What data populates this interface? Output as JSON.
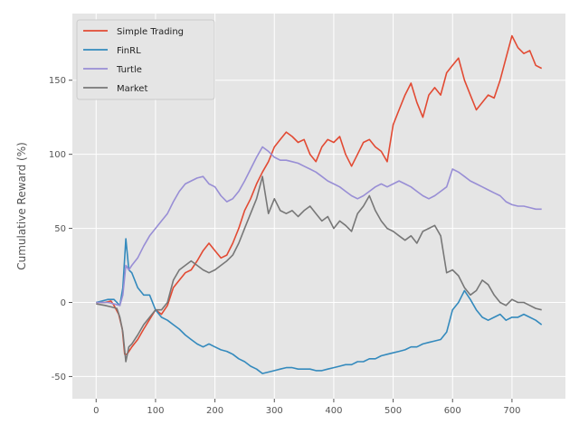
{
  "chart_data": {
    "type": "line",
    "title": "",
    "xlabel": "",
    "ylabel": "Cumulative Reward (%)",
    "xlim": [
      -40,
      790
    ],
    "ylim": [
      -65,
      195
    ],
    "xticks": [
      0,
      100,
      200,
      300,
      400,
      500,
      600,
      700
    ],
    "yticks": [
      -50,
      0,
      50,
      100,
      150
    ],
    "grid": true,
    "legend_position": "upper-left",
    "series": [
      {
        "name": "Simple Trading",
        "color": "#E24A33",
        "x": [
          0,
          15,
          25,
          30,
          38,
          44,
          48,
          52,
          60,
          70,
          80,
          100,
          110,
          120,
          130,
          140,
          150,
          160,
          170,
          180,
          190,
          200,
          210,
          220,
          230,
          240,
          250,
          260,
          270,
          280,
          290,
          300,
          310,
          320,
          330,
          340,
          350,
          360,
          370,
          380,
          390,
          400,
          410,
          420,
          430,
          440,
          450,
          460,
          470,
          480,
          490,
          500,
          510,
          520,
          530,
          540,
          550,
          560,
          570,
          580,
          590,
          600,
          610,
          620,
          630,
          640,
          650,
          660,
          670,
          680,
          690,
          700,
          710,
          720,
          730,
          740,
          750
        ],
        "y": [
          0,
          0,
          1,
          -2,
          -8,
          -18,
          -35,
          -35,
          -30,
          -25,
          -18,
          -5,
          -8,
          -2,
          10,
          15,
          20,
          22,
          28,
          35,
          40,
          35,
          30,
          32,
          40,
          50,
          62,
          70,
          80,
          88,
          95,
          105,
          110,
          115,
          112,
          108,
          110,
          100,
          95,
          105,
          110,
          108,
          112,
          100,
          92,
          100,
          108,
          110,
          105,
          102,
          95,
          120,
          130,
          140,
          148,
          135,
          125,
          140,
          145,
          140,
          155,
          160,
          165,
          150,
          140,
          130,
          135,
          140,
          138,
          150,
          165,
          180,
          172,
          168,
          170,
          160,
          158
        ]
      },
      {
        "name": "FinRL",
        "color": "#348ABD",
        "x": [
          0,
          10,
          20,
          30,
          40,
          45,
          50,
          55,
          60,
          70,
          80,
          90,
          100,
          110,
          120,
          130,
          140,
          150,
          160,
          170,
          180,
          190,
          200,
          210,
          220,
          230,
          240,
          250,
          260,
          270,
          280,
          290,
          300,
          310,
          320,
          330,
          340,
          350,
          360,
          370,
          380,
          390,
          400,
          410,
          420,
          430,
          440,
          450,
          460,
          470,
          480,
          490,
          500,
          510,
          520,
          530,
          540,
          550,
          560,
          570,
          580,
          590,
          600,
          610,
          620,
          630,
          640,
          650,
          660,
          670,
          680,
          690,
          700,
          710,
          720,
          730,
          740,
          750
        ],
        "y": [
          0,
          1,
          2,
          2,
          -2,
          10,
          43,
          22,
          20,
          10,
          5,
          5,
          -5,
          -10,
          -12,
          -15,
          -18,
          -22,
          -25,
          -28,
          -30,
          -28,
          -30,
          -32,
          -33,
          -35,
          -38,
          -40,
          -43,
          -45,
          -48,
          -47,
          -46,
          -45,
          -44,
          -44,
          -45,
          -45,
          -45,
          -46,
          -46,
          -45,
          -44,
          -43,
          -42,
          -42,
          -40,
          -40,
          -38,
          -38,
          -36,
          -35,
          -34,
          -33,
          -32,
          -30,
          -30,
          -28,
          -27,
          -26,
          -25,
          -20,
          -5,
          0,
          8,
          2,
          -5,
          -10,
          -12,
          -10,
          -8,
          -12,
          -10,
          -10,
          -8,
          -10,
          -12,
          -15
        ]
      },
      {
        "name": "Turtle",
        "color": "#988ED5",
        "x": [
          0,
          20,
          30,
          40,
          45,
          50,
          55,
          60,
          70,
          80,
          90,
          100,
          110,
          120,
          130,
          140,
          150,
          160,
          170,
          180,
          190,
          200,
          210,
          220,
          230,
          240,
          250,
          260,
          270,
          280,
          290,
          300,
          310,
          320,
          330,
          340,
          350,
          360,
          370,
          380,
          390,
          400,
          410,
          420,
          430,
          440,
          450,
          460,
          470,
          480,
          490,
          500,
          510,
          520,
          530,
          540,
          550,
          560,
          570,
          580,
          590,
          600,
          610,
          620,
          630,
          640,
          650,
          660,
          670,
          680,
          690,
          700,
          710,
          720,
          730,
          740,
          750
        ],
        "y": [
          0,
          0,
          -1,
          -2,
          5,
          25,
          22,
          25,
          30,
          38,
          45,
          50,
          55,
          60,
          68,
          75,
          80,
          82,
          84,
          85,
          80,
          78,
          72,
          68,
          70,
          75,
          82,
          90,
          98,
          105,
          102,
          98,
          96,
          96,
          95,
          94,
          92,
          90,
          88,
          85,
          82,
          80,
          78,
          75,
          72,
          70,
          72,
          75,
          78,
          80,
          78,
          80,
          82,
          80,
          78,
          75,
          72,
          70,
          72,
          75,
          78,
          90,
          88,
          85,
          82,
          80,
          78,
          76,
          74,
          72,
          68,
          66,
          65,
          65,
          64,
          63,
          63
        ]
      },
      {
        "name": "Market",
        "color": "#777777",
        "x": [
          0,
          15,
          25,
          35,
          40,
          45,
          50,
          55,
          60,
          70,
          80,
          90,
          100,
          110,
          120,
          130,
          140,
          150,
          160,
          170,
          180,
          190,
          200,
          210,
          220,
          230,
          240,
          250,
          260,
          270,
          280,
          290,
          300,
          310,
          320,
          330,
          340,
          350,
          360,
          370,
          380,
          390,
          400,
          410,
          420,
          430,
          440,
          450,
          460,
          470,
          480,
          490,
          500,
          510,
          520,
          530,
          540,
          550,
          560,
          570,
          580,
          590,
          600,
          610,
          620,
          630,
          640,
          650,
          660,
          670,
          680,
          690,
          700,
          710,
          720,
          730,
          740,
          750
        ],
        "y": [
          -1,
          -2,
          -3,
          -4,
          -10,
          -20,
          -40,
          -30,
          -28,
          -22,
          -15,
          -10,
          -5,
          -5,
          0,
          15,
          22,
          25,
          28,
          25,
          22,
          20,
          22,
          25,
          28,
          32,
          40,
          50,
          60,
          70,
          85,
          60,
          70,
          62,
          60,
          62,
          58,
          62,
          65,
          60,
          55,
          58,
          50,
          55,
          52,
          48,
          60,
          65,
          72,
          62,
          55,
          50,
          48,
          45,
          42,
          45,
          40,
          48,
          50,
          52,
          45,
          20,
          22,
          18,
          10,
          5,
          8,
          15,
          12,
          5,
          0,
          -2,
          2,
          0,
          0,
          -2,
          -4,
          -5
        ]
      }
    ]
  }
}
